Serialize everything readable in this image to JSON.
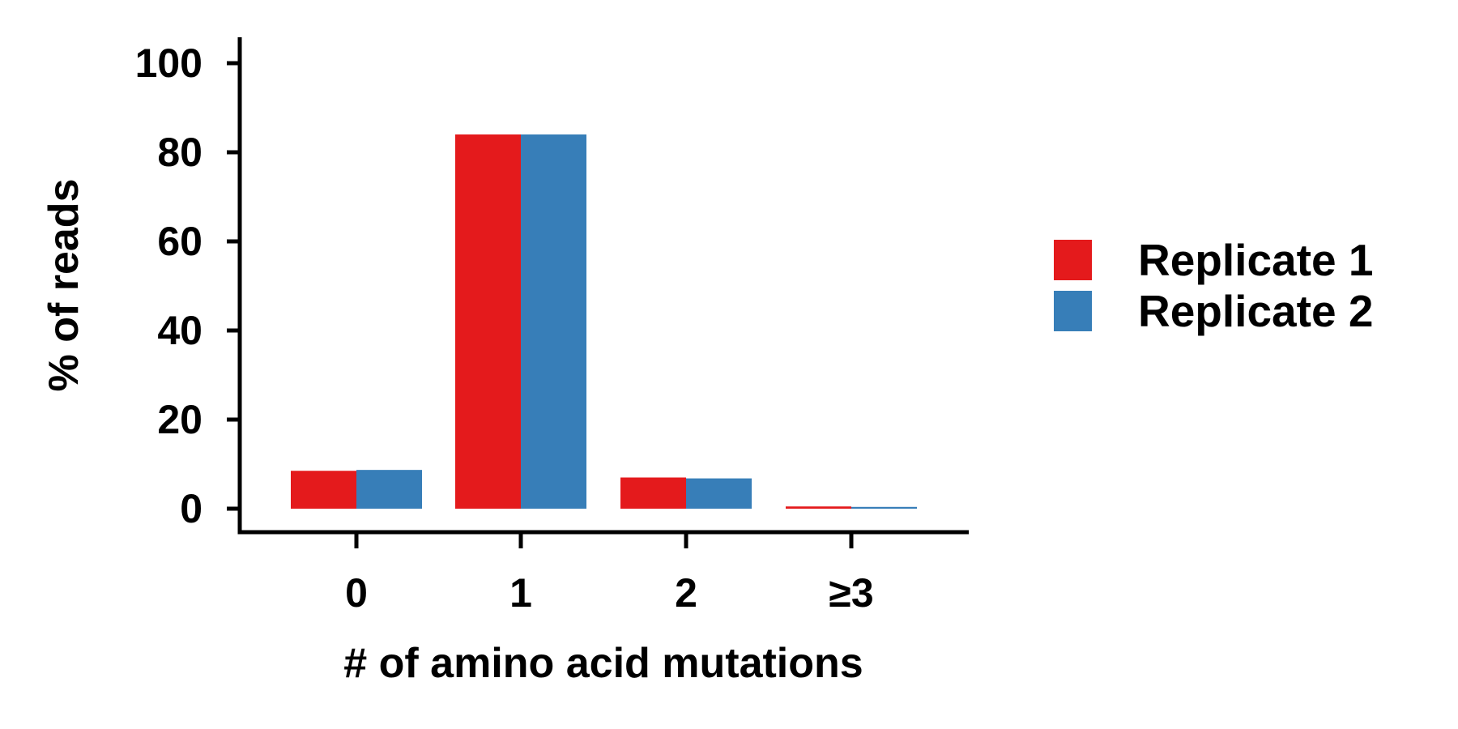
{
  "chart_data": {
    "type": "bar",
    "title": "",
    "xlabel": "# of amino acid mutations",
    "ylabel": "% of reads",
    "categories": [
      "0",
      "1",
      "2",
      "≥3"
    ],
    "series": [
      {
        "name": "Replicate 1",
        "color": "#e41a1c",
        "values": [
          8.5,
          84,
          7.0,
          0.5
        ]
      },
      {
        "name": "Replicate 2",
        "color": "#377eb8",
        "values": [
          8.7,
          84,
          6.8,
          0.4
        ]
      }
    ],
    "yticks": [
      0,
      20,
      40,
      60,
      80,
      100
    ],
    "ytick_labels": [
      "0",
      "20",
      "40",
      "60",
      "80",
      "100"
    ],
    "ylim": [
      0,
      100
    ],
    "grid": false,
    "legend_position": "right"
  }
}
